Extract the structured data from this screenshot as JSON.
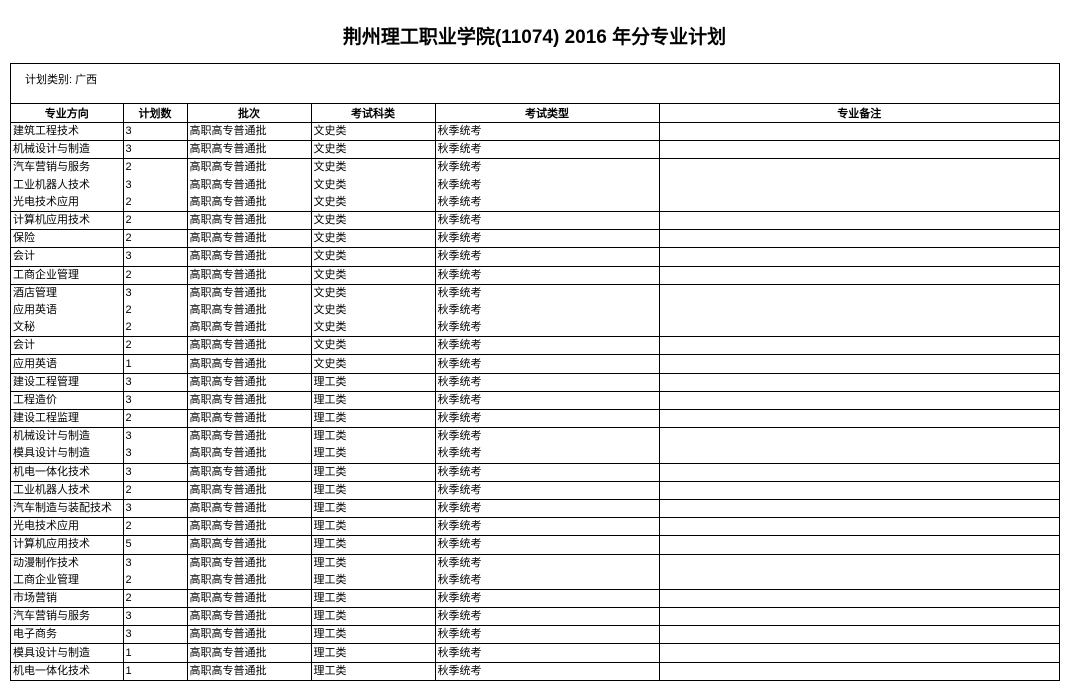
{
  "title": "荆州理工职业学院(11074) 2016 年分专业计划",
  "plan_category_label": "计划类别:",
  "plan_category_value": "广西",
  "headers": [
    "专业方向",
    "计划数",
    "批次",
    "考试科类",
    "考试类型",
    "专业备注"
  ],
  "rows": [
    [
      "建筑工程技术",
      "3",
      "高职高专普通批",
      "文史类",
      "秋季统考",
      ""
    ],
    [
      "机械设计与制造",
      "3",
      "高职高专普通批",
      "文史类",
      "秋季统考",
      ""
    ],
    [
      "汽车营销与服务",
      "2",
      "高职高专普通批",
      "文史类",
      "秋季统考",
      ""
    ],
    [
      "工业机器人技术",
      "3",
      "高职高专普通批",
      "文史类",
      "秋季统考",
      ""
    ],
    [
      "光电技术应用",
      "2",
      "高职高专普通批",
      "文史类",
      "秋季统考",
      ""
    ],
    [
      "计算机应用技术",
      "2",
      "高职高专普通批",
      "文史类",
      "秋季统考",
      ""
    ],
    [
      "保险",
      "2",
      "高职高专普通批",
      "文史类",
      "秋季统考",
      ""
    ],
    [
      "会计",
      "3",
      "高职高专普通批",
      "文史类",
      "秋季统考",
      ""
    ],
    [
      "工商企业管理",
      "2",
      "高职高专普通批",
      "文史类",
      "秋季统考",
      ""
    ],
    [
      "酒店管理",
      "3",
      "高职高专普通批",
      "文史类",
      "秋季统考",
      ""
    ],
    [
      "应用英语",
      "2",
      "高职高专普通批",
      "文史类",
      "秋季统考",
      ""
    ],
    [
      "文秘",
      "2",
      "高职高专普通批",
      "文史类",
      "秋季统考",
      ""
    ],
    [
      "会计",
      "2",
      "高职高专普通批",
      "文史类",
      "秋季统考",
      ""
    ],
    [
      "应用英语",
      "1",
      "高职高专普通批",
      "文史类",
      "秋季统考",
      ""
    ],
    [
      "建设工程管理",
      "3",
      "高职高专普通批",
      "理工类",
      "秋季统考",
      ""
    ],
    [
      "工程造价",
      "3",
      "高职高专普通批",
      "理工类",
      "秋季统考",
      ""
    ],
    [
      "建设工程监理",
      "2",
      "高职高专普通批",
      "理工类",
      "秋季统考",
      ""
    ],
    [
      "机械设计与制造",
      "3",
      "高职高专普通批",
      "理工类",
      "秋季统考",
      ""
    ],
    [
      "模具设计与制造",
      "3",
      "高职高专普通批",
      "理工类",
      "秋季统考",
      ""
    ],
    [
      "机电一体化技术",
      "3",
      "高职高专普通批",
      "理工类",
      "秋季统考",
      ""
    ],
    [
      "工业机器人技术",
      "2",
      "高职高专普通批",
      "理工类",
      "秋季统考",
      ""
    ],
    [
      "汽车制造与装配技术",
      "3",
      "高职高专普通批",
      "理工类",
      "秋季统考",
      ""
    ],
    [
      "光电技术应用",
      "2",
      "高职高专普通批",
      "理工类",
      "秋季统考",
      ""
    ],
    [
      "计算机应用技术",
      "5",
      "高职高专普通批",
      "理工类",
      "秋季统考",
      ""
    ],
    [
      "动漫制作技术",
      "3",
      "高职高专普通批",
      "理工类",
      "秋季统考",
      ""
    ],
    [
      "工商企业管理",
      "2",
      "高职高专普通批",
      "理工类",
      "秋季统考",
      ""
    ],
    [
      "市场营销",
      "2",
      "高职高专普通批",
      "理工类",
      "秋季统考",
      ""
    ],
    [
      "汽车营销与服务",
      "3",
      "高职高专普通批",
      "理工类",
      "秋季统考",
      ""
    ],
    [
      "电子商务",
      "3",
      "高职高专普通批",
      "理工类",
      "秋季统考",
      ""
    ],
    [
      "模具设计与制造",
      "1",
      "高职高专普通批",
      "理工类",
      "秋季统考",
      ""
    ],
    [
      "机电一体化技术",
      "1",
      "高职高专普通批",
      "理工类",
      "秋季统考",
      ""
    ]
  ]
}
